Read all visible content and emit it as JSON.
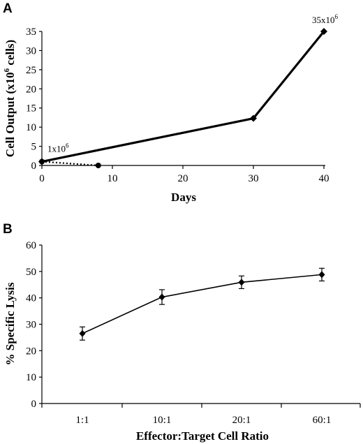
{
  "chart_data": [
    {
      "panel": "A",
      "type": "line",
      "xlabel": "Days",
      "ylabel": "Cell Output (x10^6 cells)",
      "ylabel_base": "Cell Output (x10",
      "ylabel_exp": "6",
      "ylabel_tail": " cells)",
      "xlim": [
        0,
        40
      ],
      "ylim": [
        0,
        35
      ],
      "x_ticks": [
        0,
        10,
        20,
        30,
        40
      ],
      "y_ticks": [
        0,
        5,
        10,
        15,
        20,
        25,
        30,
        35
      ],
      "series": [
        {
          "style": "solid",
          "marker": "diamond",
          "x": [
            0,
            30,
            40
          ],
          "y": [
            1,
            12.3,
            35
          ]
        },
        {
          "style": "dotted",
          "marker": "circle",
          "x": [
            0,
            8
          ],
          "y": [
            1,
            0
          ]
        }
      ],
      "annotations": [
        {
          "base": "1x10",
          "exp": "6",
          "x": 0,
          "y": 1
        },
        {
          "base": "35x10",
          "exp": "6",
          "x": 40,
          "y": 35
        }
      ]
    },
    {
      "panel": "B",
      "type": "line",
      "xlabel": "Effector:Target Cell Ratio",
      "ylabel": "% Specific Lysis",
      "categories": [
        "1:1",
        "10:1",
        "20:1",
        "60:1"
      ],
      "ylim": [
        0,
        60
      ],
      "y_ticks": [
        0,
        10,
        20,
        30,
        40,
        50,
        60
      ],
      "series": [
        {
          "marker": "diamond",
          "values": [
            26.5,
            40.3,
            45.9,
            48.8
          ],
          "errors": [
            2.5,
            2.8,
            2.4,
            2.4
          ]
        }
      ]
    }
  ]
}
